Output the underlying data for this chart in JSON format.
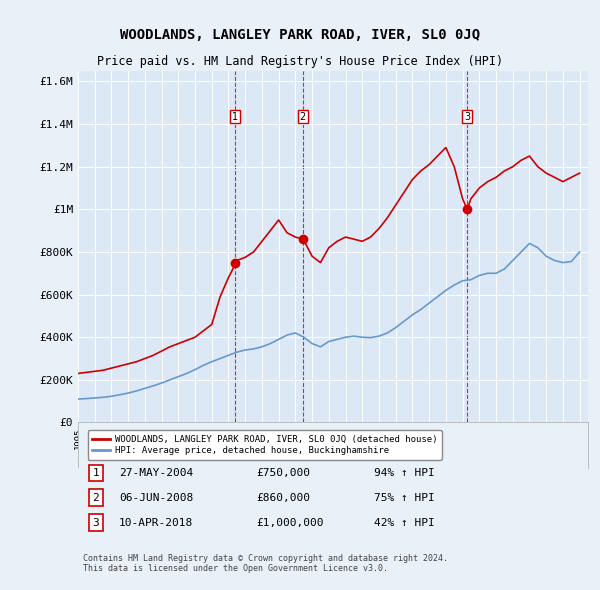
{
  "title": "WOODLANDS, LANGLEY PARK ROAD, IVER, SL0 0JQ",
  "subtitle": "Price paid vs. HM Land Registry's House Price Index (HPI)",
  "background_color": "#e8f0f8",
  "plot_bg_color": "#dce8f5",
  "red_line_color": "#cc0000",
  "blue_line_color": "#6699cc",
  "sale_dates": [
    "2004-05-27",
    "2008-06-06",
    "2018-04-10"
  ],
  "sale_prices": [
    750000,
    860000,
    1000000
  ],
  "sale_labels": [
    "1",
    "2",
    "3"
  ],
  "legend_red": "WOODLANDS, LANGLEY PARK ROAD, IVER, SL0 0JQ (detached house)",
  "legend_blue": "HPI: Average price, detached house, Buckinghamshire",
  "table_rows": [
    [
      "1",
      "27-MAY-2004",
      "£750,000",
      "94% ↑ HPI"
    ],
    [
      "2",
      "06-JUN-2008",
      "£860,000",
      "75% ↑ HPI"
    ],
    [
      "3",
      "10-APR-2018",
      "£1,000,000",
      "42% ↑ HPI"
    ]
  ],
  "footer": "Contains HM Land Registry data © Crown copyright and database right 2024.\nThis data is licensed under the Open Government Licence v3.0.",
  "ylim": [
    0,
    1650000
  ],
  "yticks": [
    0,
    200000,
    400000,
    600000,
    800000,
    1000000,
    1200000,
    1400000,
    1600000
  ],
  "ytick_labels": [
    "£0",
    "£200K",
    "£400K",
    "£600K",
    "£800K",
    "£1M",
    "£1.2M",
    "£1.4M",
    "£1.6M"
  ],
  "red_data": {
    "years": [
      1995.0,
      1995.5,
      1996.0,
      1996.5,
      1997.0,
      1997.5,
      1998.0,
      1998.5,
      1999.0,
      1999.5,
      2000.0,
      2000.5,
      2001.0,
      2001.5,
      2002.0,
      2002.5,
      2003.0,
      2003.5,
      2004.0,
      2004.458,
      2004.5,
      2005.0,
      2005.5,
      2006.0,
      2006.5,
      2007.0,
      2007.5,
      2008.0,
      2008.458,
      2008.5,
      2009.0,
      2009.5,
      2010.0,
      2010.5,
      2011.0,
      2011.5,
      2012.0,
      2012.5,
      2013.0,
      2013.5,
      2014.0,
      2014.5,
      2015.0,
      2015.5,
      2016.0,
      2016.5,
      2017.0,
      2017.5,
      2018.0,
      2018.274,
      2018.5,
      2019.0,
      2019.5,
      2020.0,
      2020.5,
      2021.0,
      2021.5,
      2022.0,
      2022.5,
      2023.0,
      2023.5,
      2024.0,
      2024.5,
      2025.0
    ],
    "values": [
      230000,
      235000,
      240000,
      245000,
      255000,
      265000,
      275000,
      285000,
      300000,
      315000,
      335000,
      355000,
      370000,
      385000,
      400000,
      430000,
      460000,
      590000,
      680000,
      750000,
      760000,
      775000,
      800000,
      850000,
      900000,
      950000,
      890000,
      870000,
      860000,
      855000,
      780000,
      750000,
      820000,
      850000,
      870000,
      860000,
      850000,
      870000,
      910000,
      960000,
      1020000,
      1080000,
      1140000,
      1180000,
      1210000,
      1250000,
      1290000,
      1200000,
      1050000,
      1000000,
      1050000,
      1100000,
      1130000,
      1150000,
      1180000,
      1200000,
      1230000,
      1250000,
      1200000,
      1170000,
      1150000,
      1130000,
      1150000,
      1170000
    ]
  },
  "blue_data": {
    "years": [
      1995.0,
      1995.5,
      1996.0,
      1996.5,
      1997.0,
      1997.5,
      1998.0,
      1998.5,
      1999.0,
      1999.5,
      2000.0,
      2000.5,
      2001.0,
      2001.5,
      2002.0,
      2002.5,
      2003.0,
      2003.5,
      2004.0,
      2004.5,
      2005.0,
      2005.5,
      2006.0,
      2006.5,
      2007.0,
      2007.5,
      2008.0,
      2008.5,
      2009.0,
      2009.5,
      2010.0,
      2010.5,
      2011.0,
      2011.5,
      2012.0,
      2012.5,
      2013.0,
      2013.5,
      2014.0,
      2014.5,
      2015.0,
      2015.5,
      2016.0,
      2016.5,
      2017.0,
      2017.5,
      2018.0,
      2018.5,
      2019.0,
      2019.5,
      2020.0,
      2020.5,
      2021.0,
      2021.5,
      2022.0,
      2022.5,
      2023.0,
      2023.5,
      2024.0,
      2024.5,
      2025.0
    ],
    "values": [
      110000,
      112000,
      115000,
      118000,
      123000,
      130000,
      138000,
      148000,
      160000,
      172000,
      185000,
      200000,
      215000,
      230000,
      248000,
      268000,
      285000,
      300000,
      315000,
      330000,
      340000,
      345000,
      355000,
      370000,
      390000,
      410000,
      420000,
      400000,
      370000,
      355000,
      380000,
      390000,
      400000,
      405000,
      400000,
      398000,
      405000,
      420000,
      445000,
      475000,
      505000,
      530000,
      560000,
      590000,
      620000,
      645000,
      665000,
      670000,
      690000,
      700000,
      700000,
      720000,
      760000,
      800000,
      840000,
      820000,
      780000,
      760000,
      750000,
      755000,
      800000
    ]
  }
}
